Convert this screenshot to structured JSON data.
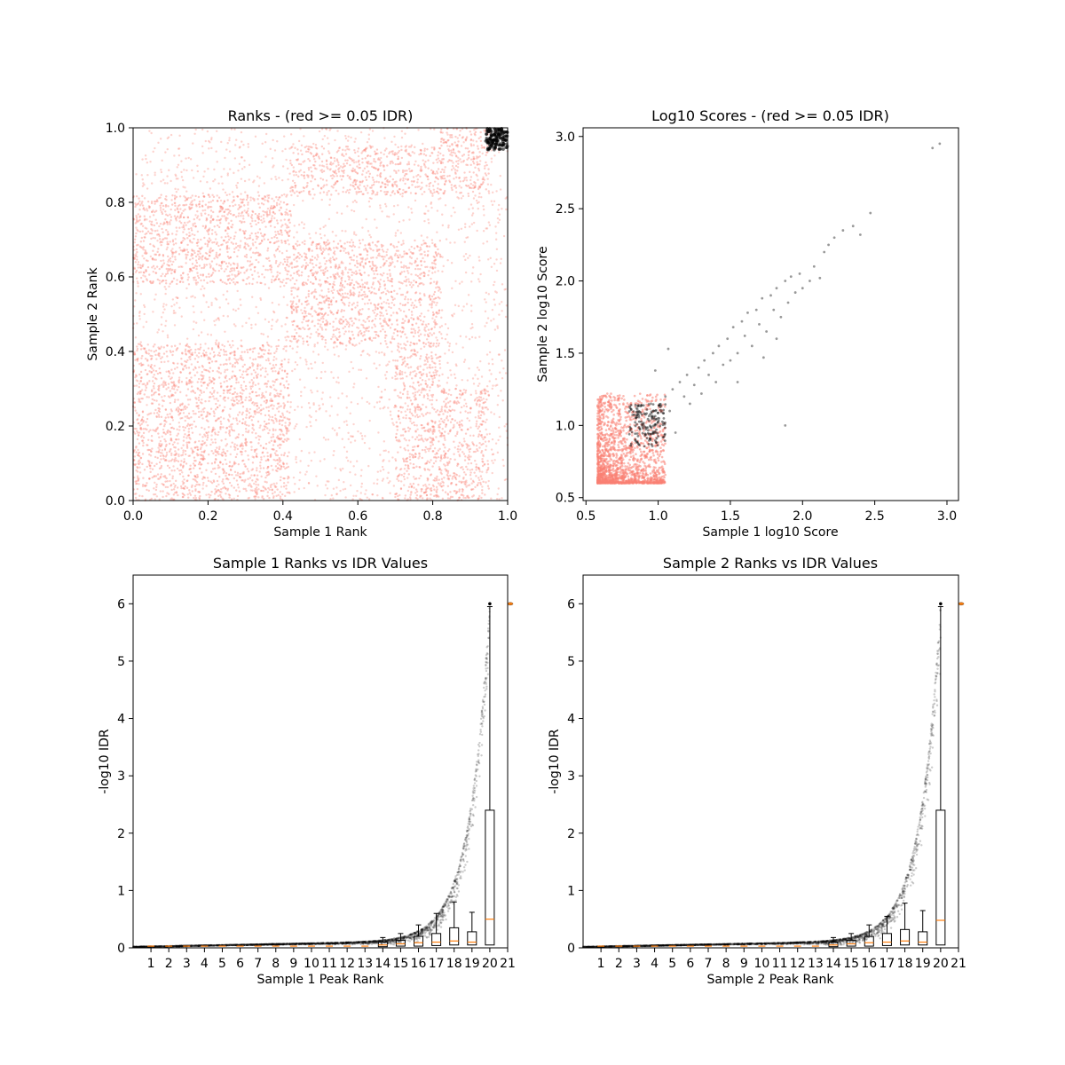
{
  "chart_data": [
    {
      "type": "scatter",
      "title": "Ranks - (red >= 0.05 IDR)",
      "xlabel": "Sample 1 Rank",
      "ylabel": "Sample 2 Rank",
      "xlim": [
        0,
        1
      ],
      "ylim": [
        0,
        1
      ],
      "xticks": [
        0.0,
        0.2,
        0.4,
        0.6,
        0.8,
        1.0
      ],
      "yticks": [
        0.0,
        0.2,
        0.4,
        0.6,
        0.8,
        1.0
      ],
      "xtick_labels": [
        "0.0",
        "0.2",
        "0.4",
        "0.6",
        "0.8",
        "1.0"
      ],
      "ytick_labels": [
        "0.0",
        "0.2",
        "0.4",
        "0.6",
        "0.8",
        "1.0"
      ],
      "grid": false,
      "colors": {
        "low_idr": "#000000",
        "high_idr": "#fa8072"
      },
      "series": [
        {
          "color": "high_idr",
          "description_of_regions": "dense block structure",
          "dense_blocks": [
            {
              "x": [
                0.0,
                0.42
              ],
              "y": [
                0.0,
                0.42
              ]
            },
            {
              "x": [
                0.0,
                0.42
              ],
              "y": [
                0.58,
                0.82
              ]
            },
            {
              "x": [
                0.42,
                0.82
              ],
              "y": [
                0.42,
                0.7
              ]
            },
            {
              "x": [
                0.42,
                0.82
              ],
              "y": [
                0.82,
                0.95
              ]
            },
            {
              "x": [
                0.7,
                0.82
              ],
              "y": [
                0.0,
                0.42
              ]
            },
            {
              "x": [
                0.82,
                0.95
              ],
              "y": [
                0.82,
                1.0
              ]
            },
            {
              "x": [
                0.82,
                0.95
              ],
              "y": [
                0.0,
                0.3
              ]
            }
          ]
        },
        {
          "color": "low_idr",
          "cluster": {
            "x": [
              0.94,
              1.0
            ],
            "y": [
              0.94,
              1.0
            ]
          }
        }
      ]
    },
    {
      "type": "scatter",
      "title": "Log10 Scores - (red >= 0.05 IDR)",
      "xlabel": "Sample 1 log10 Score",
      "ylabel": "Sample 2 log10 Score",
      "xlim": [
        0.48,
        3.08
      ],
      "ylim": [
        0.48,
        3.06
      ],
      "xticks": [
        0.5,
        1.0,
        1.5,
        2.0,
        2.5,
        3.0
      ],
      "yticks": [
        0.5,
        1.0,
        1.5,
        2.0,
        2.5,
        3.0
      ],
      "xtick_labels": [
        "0.5",
        "1.0",
        "1.5",
        "2.0",
        "2.5",
        "3.0"
      ],
      "ytick_labels": [
        "0.5",
        "1.0",
        "1.5",
        "2.0",
        "2.5",
        "3.0"
      ],
      "grid": false,
      "colors": {
        "low_idr": "#000000",
        "high_idr": "#fa8072"
      },
      "red_cluster": {
        "x": [
          0.58,
          1.05
        ],
        "y": [
          0.6,
          1.22
        ]
      },
      "black_cluster": {
        "x": [
          0.8,
          1.05
        ],
        "y": [
          0.85,
          1.15
        ]
      },
      "black_points": [
        [
          0.85,
          1.12
        ],
        [
          0.9,
          1.0
        ],
        [
          0.95,
          1.15
        ],
        [
          1.0,
          1.05
        ],
        [
          1.05,
          1.2
        ],
        [
          1.08,
          1.1
        ],
        [
          1.1,
          1.25
        ],
        [
          1.12,
          0.95
        ],
        [
          1.15,
          1.3
        ],
        [
          1.18,
          1.2
        ],
        [
          1.2,
          1.35
        ],
        [
          1.22,
          1.15
        ],
        [
          1.25,
          1.28
        ],
        [
          1.28,
          1.4
        ],
        [
          1.3,
          1.22
        ],
        [
          1.32,
          1.45
        ],
        [
          1.35,
          1.35
        ],
        [
          1.38,
          1.5
        ],
        [
          1.4,
          1.3
        ],
        [
          1.42,
          1.55
        ],
        [
          1.45,
          1.42
        ],
        [
          1.48,
          1.6
        ],
        [
          1.5,
          1.45
        ],
        [
          1.52,
          1.68
        ],
        [
          1.55,
          1.5
        ],
        [
          1.58,
          1.72
        ],
        [
          1.6,
          1.62
        ],
        [
          1.62,
          1.78
        ],
        [
          1.65,
          1.55
        ],
        [
          1.68,
          1.8
        ],
        [
          1.7,
          1.7
        ],
        [
          1.72,
          1.88
        ],
        [
          1.75,
          1.65
        ],
        [
          1.78,
          1.9
        ],
        [
          1.8,
          1.8
        ],
        [
          1.82,
          1.95
        ],
        [
          1.85,
          1.75
        ],
        [
          1.88,
          2.0
        ],
        [
          1.9,
          1.85
        ],
        [
          1.92,
          2.03
        ],
        [
          1.95,
          1.92
        ],
        [
          1.98,
          2.05
        ],
        [
          2.0,
          1.95
        ],
        [
          2.05,
          2.0
        ],
        [
          2.08,
          2.1
        ],
        [
          2.12,
          2.02
        ],
        [
          2.15,
          2.2
        ],
        [
          2.18,
          2.25
        ],
        [
          2.22,
          2.3
        ],
        [
          2.28,
          2.35
        ],
        [
          2.35,
          2.38
        ],
        [
          2.4,
          2.32
        ],
        [
          2.47,
          2.47
        ],
        [
          2.9,
          2.92
        ],
        [
          2.95,
          2.95
        ],
        [
          1.88,
          1.0
        ],
        [
          0.98,
          1.38
        ],
        [
          1.07,
          1.53
        ],
        [
          1.55,
          1.3
        ],
        [
          1.73,
          1.47
        ],
        [
          1.82,
          1.6
        ]
      ]
    },
    {
      "type": "box",
      "title": "Sample 1 Ranks vs IDR Values",
      "xlabel": "Sample 1 Peak Rank",
      "ylabel": "-log10 IDR",
      "xlim": [
        0,
        21
      ],
      "ylim": [
        0,
        6.5
      ],
      "categories": [
        "1",
        "2",
        "3",
        "4",
        "5",
        "6",
        "7",
        "8",
        "9",
        "10",
        "11",
        "12",
        "13",
        "14",
        "15",
        "16",
        "17",
        "18",
        "19",
        "20",
        "21"
      ],
      "yticks": [
        0,
        1,
        2,
        3,
        4,
        5,
        6
      ],
      "ytick_labels": [
        "0",
        "1",
        "2",
        "3",
        "4",
        "5",
        "6"
      ],
      "boxes": [
        {
          "pos": 14,
          "q1": 0.02,
          "median": 0.05,
          "q3": 0.1,
          "whisker_high": 0.18
        },
        {
          "pos": 15,
          "q1": 0.03,
          "median": 0.07,
          "q3": 0.13,
          "whisker_high": 0.25
        },
        {
          "pos": 16,
          "q1": 0.03,
          "median": 0.09,
          "q3": 0.2,
          "whisker_high": 0.4
        },
        {
          "pos": 17,
          "q1": 0.04,
          "median": 0.1,
          "q3": 0.25,
          "whisker_high": 0.6
        },
        {
          "pos": 18,
          "q1": 0.05,
          "median": 0.12,
          "q3": 0.35,
          "whisker_high": 0.8
        },
        {
          "pos": 19,
          "q1": 0.05,
          "median": 0.1,
          "q3": 0.28,
          "whisker_high": 0.62
        },
        {
          "pos": 20,
          "q1": 0.05,
          "median": 0.5,
          "q3": 2.4,
          "whisker_high": 5.95
        }
      ],
      "outlier_mark": {
        "x": 21,
        "y": 6.0
      },
      "curve_color": "#000000",
      "median_color": "#ff7f0e"
    },
    {
      "type": "box",
      "title": "Sample 2 Ranks vs IDR Values",
      "xlabel": "Sample 2 Peak Rank",
      "ylabel": "-log10 IDR",
      "xlim": [
        0,
        21
      ],
      "ylim": [
        0,
        6.5
      ],
      "categories": [
        "1",
        "2",
        "3",
        "4",
        "5",
        "6",
        "7",
        "8",
        "9",
        "10",
        "11",
        "12",
        "13",
        "14",
        "15",
        "16",
        "17",
        "18",
        "19",
        "20",
        "21"
      ],
      "yticks": [
        0,
        1,
        2,
        3,
        4,
        5,
        6
      ],
      "ytick_labels": [
        "0",
        "1",
        "2",
        "3",
        "4",
        "5",
        "6"
      ],
      "boxes": [
        {
          "pos": 14,
          "q1": 0.02,
          "median": 0.05,
          "q3": 0.1,
          "whisker_high": 0.18
        },
        {
          "pos": 15,
          "q1": 0.03,
          "median": 0.07,
          "q3": 0.13,
          "whisker_high": 0.25
        },
        {
          "pos": 16,
          "q1": 0.03,
          "median": 0.09,
          "q3": 0.2,
          "whisker_high": 0.4
        },
        {
          "pos": 17,
          "q1": 0.04,
          "median": 0.1,
          "q3": 0.25,
          "whisker_high": 0.55
        },
        {
          "pos": 18,
          "q1": 0.05,
          "median": 0.12,
          "q3": 0.32,
          "whisker_high": 0.78
        },
        {
          "pos": 19,
          "q1": 0.05,
          "median": 0.1,
          "q3": 0.28,
          "whisker_high": 0.65
        },
        {
          "pos": 20,
          "q1": 0.05,
          "median": 0.48,
          "q3": 2.4,
          "whisker_high": 5.95
        }
      ],
      "outlier_mark": {
        "x": 21,
        "y": 6.0
      },
      "curve_color": "#000000",
      "median_color": "#ff7f0e"
    }
  ]
}
